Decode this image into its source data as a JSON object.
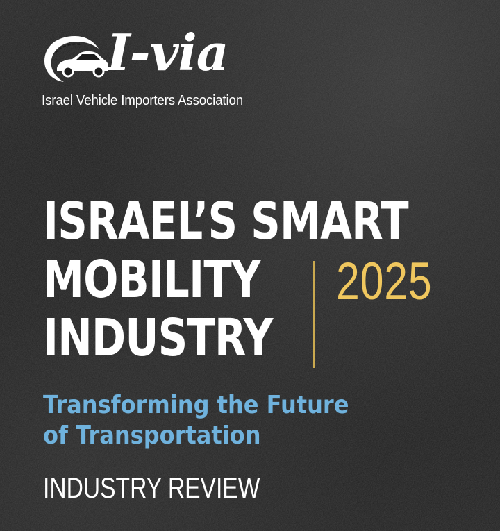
{
  "logo": {
    "wordmark": "I-via",
    "tagline": "Israel Vehicle Importers Association",
    "icon": "car-road-emblem-icon"
  },
  "title": {
    "lines": [
      "ISRAEL’S SMART",
      "MOBILITY",
      "INDUSTRY"
    ],
    "year": "2025"
  },
  "subtitle": {
    "lines": [
      "Transforming the Future",
      "of Transportation"
    ]
  },
  "review_label": "INDUSTRY REVIEW",
  "colors": {
    "background": "#1c1c1c",
    "title": "#ffffff",
    "year": "#f0c75e",
    "divider": "#caa94f",
    "subtitle": "#6fb2dd"
  }
}
